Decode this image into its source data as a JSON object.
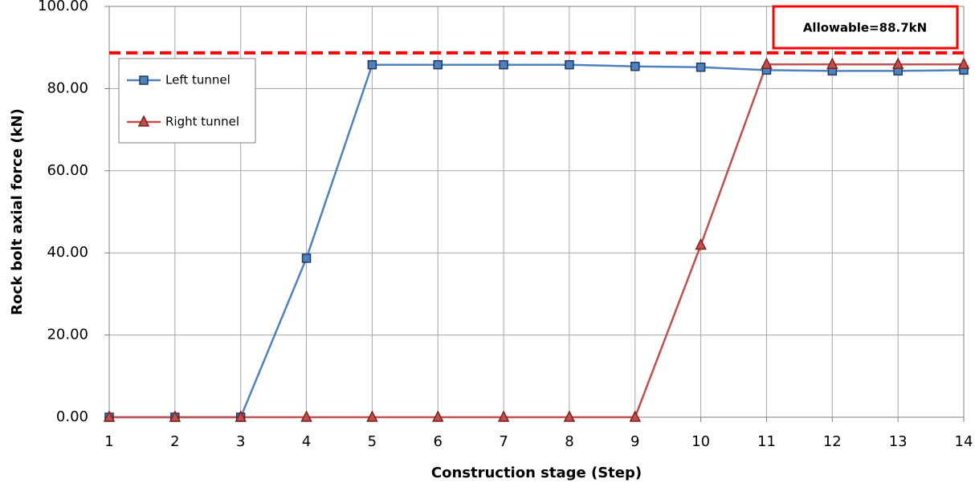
{
  "chart_data": {
    "type": "line",
    "x_label": "Construction stage (Step)",
    "y_label": "Rock bolt axial force (kN)",
    "x": [
      1,
      2,
      3,
      4,
      5,
      6,
      7,
      8,
      9,
      10,
      11,
      12,
      13,
      14
    ],
    "series": [
      {
        "name": "Left tunnel",
        "color": "#4f81bd",
        "marker": "square",
        "values": [
          0,
          0,
          0,
          38.7,
          85.8,
          85.8,
          85.8,
          85.8,
          85.4,
          85.2,
          84.5,
          84.3,
          84.3,
          84.5
        ]
      },
      {
        "name": "Right tunnel",
        "color": "#c0504d",
        "marker": "triangle",
        "values": [
          0,
          0,
          0,
          0,
          0,
          0,
          0,
          0,
          0,
          41.9,
          85.9,
          85.9,
          85.9,
          85.9
        ]
      }
    ],
    "xlim": [
      1,
      14
    ],
    "xticks": [
      1,
      2,
      3,
      4,
      5,
      6,
      7,
      8,
      9,
      10,
      11,
      12,
      13,
      14
    ],
    "ylim": [
      0,
      100
    ],
    "yticks": [
      {
        "value": 0,
        "label": "0.00"
      },
      {
        "value": 20,
        "label": "20.00"
      },
      {
        "value": 40,
        "label": "40.00"
      },
      {
        "value": 60,
        "label": "60.00"
      },
      {
        "value": 80,
        "label": "80.00"
      },
      {
        "value": 100,
        "label": "100.00"
      }
    ],
    "grid": true,
    "legend": "upper left",
    "reference_line": {
      "value": 88.7,
      "label": "Allowable=88.7kN",
      "color": "#ff0000"
    }
  }
}
